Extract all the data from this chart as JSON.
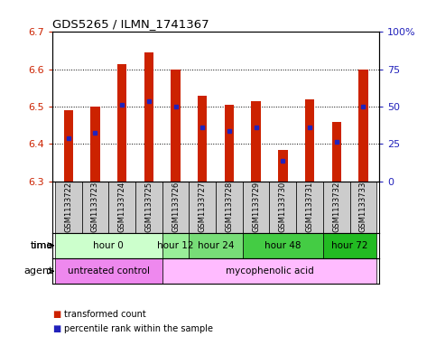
{
  "title": "GDS5265 / ILMN_1741367",
  "samples": [
    "GSM1133722",
    "GSM1133723",
    "GSM1133724",
    "GSM1133725",
    "GSM1133726",
    "GSM1133727",
    "GSM1133728",
    "GSM1133729",
    "GSM1133730",
    "GSM1133731",
    "GSM1133732",
    "GSM1133733"
  ],
  "bar_tops": [
    6.49,
    6.5,
    6.615,
    6.645,
    6.6,
    6.53,
    6.505,
    6.515,
    6.385,
    6.52,
    6.46,
    6.6
  ],
  "bar_base": 6.3,
  "blue_dot_y": [
    6.415,
    6.43,
    6.505,
    6.515,
    6.5,
    6.445,
    6.435,
    6.445,
    6.355,
    6.445,
    6.405,
    6.5
  ],
  "ylim_left": [
    6.3,
    6.7
  ],
  "ylim_right": [
    0,
    100
  ],
  "yticks_left": [
    6.3,
    6.4,
    6.5,
    6.6,
    6.7
  ],
  "ytick_labels_left": [
    "6.3",
    "6.4",
    "6.5",
    "6.6",
    "6.7"
  ],
  "yticks_right": [
    0,
    25,
    50,
    75,
    100
  ],
  "ytick_labels_right": [
    "0",
    "25",
    "50",
    "75",
    "100%"
  ],
  "bar_color": "#cc2200",
  "dot_color": "#2222bb",
  "sample_bg_color": "#cccccc",
  "time_colors": [
    "#ccffcc",
    "#99ee99",
    "#77dd77",
    "#44cc44",
    "#22bb22"
  ],
  "agent_colors": [
    "#ee88ee",
    "#ffbbff"
  ],
  "time_groups": [
    {
      "label": "hour 0",
      "samples": [
        0,
        1,
        2,
        3
      ]
    },
    {
      "label": "hour 12",
      "samples": [
        4
      ]
    },
    {
      "label": "hour 24",
      "samples": [
        5,
        6
      ]
    },
    {
      "label": "hour 48",
      "samples": [
        7,
        8,
        9
      ]
    },
    {
      "label": "hour 72",
      "samples": [
        10,
        11
      ]
    }
  ],
  "agent_groups": [
    {
      "label": "untreated control",
      "samples": [
        0,
        1,
        2,
        3
      ]
    },
    {
      "label": "mycophenolic acid",
      "samples": [
        4,
        5,
        6,
        7,
        8,
        9,
        10,
        11
      ]
    }
  ],
  "legend_bar_label": "transformed count",
  "legend_dot_label": "percentile rank within the sample",
  "time_label": "time",
  "agent_label": "agent",
  "left_tick_color": "#cc2200",
  "right_tick_color": "#2222bb",
  "bar_width": 0.35
}
